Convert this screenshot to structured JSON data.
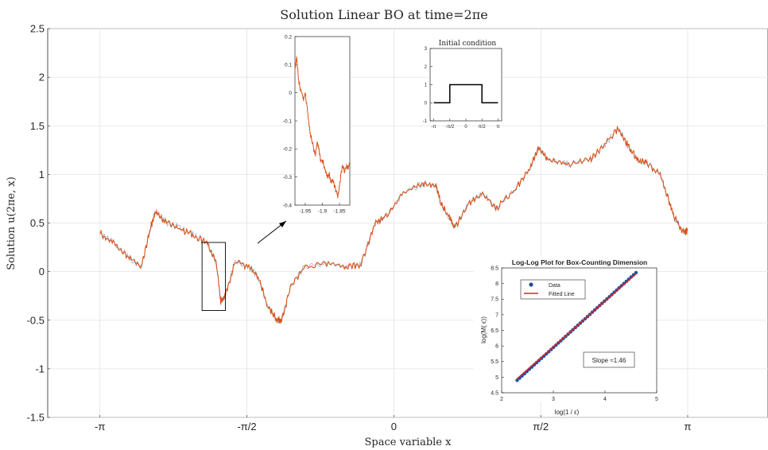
{
  "chart_data": [
    {
      "type": "line",
      "title": "Solution Linear BO at time=2πe",
      "xlabel": "Space variable x",
      "ylabel": "Solution u(2πe, x)",
      "xlim": [
        -3.7,
        4.0
      ],
      "ylim": [
        -1.5,
        2.5
      ],
      "x_ticks": [
        -3.1416,
        -1.5708,
        0,
        1.5708,
        3.1416
      ],
      "x_tick_labels": [
        "-π",
        "-π/2",
        "0",
        "π/2",
        "π"
      ],
      "y_ticks": [
        -1.5,
        -1,
        -0.5,
        0,
        0.5,
        1,
        1.5,
        2,
        2.5
      ],
      "y_tick_labels": [
        "-1.5",
        "-1",
        "-0.5",
        "0",
        "0.5",
        "1",
        "1.5",
        "2",
        "2.5"
      ],
      "grid": true,
      "series": [
        {
          "color": "#d95319",
          "points": [
            [
              -3.14,
              0.4
            ],
            [
              -3.0,
              0.3
            ],
            [
              -2.85,
              0.15
            ],
            [
              -2.7,
              0.05
            ],
            [
              -2.6,
              0.45
            ],
            [
              -2.55,
              0.62
            ],
            [
              -2.45,
              0.52
            ],
            [
              -2.3,
              0.45
            ],
            [
              -2.15,
              0.38
            ],
            [
              -2.0,
              0.3
            ],
            [
              -1.9,
              0.1
            ],
            [
              -1.85,
              -0.3
            ],
            [
              -1.8,
              -0.25
            ],
            [
              -1.7,
              0.1
            ],
            [
              -1.55,
              0.05
            ],
            [
              -1.45,
              -0.05
            ],
            [
              -1.35,
              -0.35
            ],
            [
              -1.25,
              -0.5
            ],
            [
              -1.2,
              -0.5
            ],
            [
              -1.1,
              -0.15
            ],
            [
              -0.95,
              0.05
            ],
            [
              -0.7,
              0.08
            ],
            [
              -0.5,
              0.05
            ],
            [
              -0.35,
              0.08
            ],
            [
              -0.2,
              0.5
            ],
            [
              -0.1,
              0.55
            ],
            [
              0.1,
              0.8
            ],
            [
              0.3,
              0.9
            ],
            [
              0.45,
              0.9
            ],
            [
              0.5,
              0.7
            ],
            [
              0.6,
              0.55
            ],
            [
              0.65,
              0.45
            ],
            [
              0.8,
              0.7
            ],
            [
              0.95,
              0.8
            ],
            [
              1.1,
              0.65
            ],
            [
              1.3,
              0.85
            ],
            [
              1.45,
              1.05
            ],
            [
              1.55,
              1.28
            ],
            [
              1.65,
              1.15
            ],
            [
              1.85,
              1.1
            ],
            [
              2.1,
              1.15
            ],
            [
              2.25,
              1.3
            ],
            [
              2.4,
              1.48
            ],
            [
              2.5,
              1.3
            ],
            [
              2.6,
              1.15
            ],
            [
              2.7,
              1.12
            ],
            [
              2.85,
              1.0
            ],
            [
              2.95,
              0.7
            ],
            [
              3.0,
              0.55
            ],
            [
              3.1,
              0.4
            ],
            [
              3.14,
              0.42
            ]
          ]
        }
      ],
      "zoom_box": {
        "xlim": [
          -2.05,
          -1.8
        ],
        "ylim": [
          -0.4,
          0.3
        ]
      }
    },
    {
      "type": "line",
      "title": "",
      "xlim": [
        -1.98,
        -1.82
      ],
      "ylim": [
        -0.4,
        0.2
      ],
      "x_tick_labels": [
        "-1.95",
        "-1.9",
        "-1.85"
      ],
      "x_ticks": [
        -1.95,
        -1.9,
        -1.85
      ],
      "y_ticks": [
        -0.4,
        -0.3,
        -0.2,
        -0.1,
        0,
        0.1,
        0.2
      ],
      "y_tick_labels": [
        "-0.4",
        "-0.3",
        "-0.2",
        "-0.1",
        "0",
        "0.1",
        "0.2"
      ],
      "series": [
        {
          "color": "#d95319",
          "points": [
            [
              -1.98,
              0.08
            ],
            [
              -1.975,
              0.13
            ],
            [
              -1.97,
              0.05
            ],
            [
              -1.965,
              0.02
            ],
            [
              -1.96,
              0.0
            ],
            [
              -1.955,
              -0.02
            ],
            [
              -1.95,
              0.0
            ],
            [
              -1.945,
              -0.05
            ],
            [
              -1.94,
              -0.1
            ],
            [
              -1.935,
              -0.15
            ],
            [
              -1.93,
              -0.17
            ],
            [
              -1.925,
              -0.2
            ],
            [
              -1.92,
              -0.22
            ],
            [
              -1.915,
              -0.18
            ],
            [
              -1.91,
              -0.2
            ],
            [
              -1.905,
              -0.24
            ],
            [
              -1.9,
              -0.24
            ],
            [
              -1.895,
              -0.26
            ],
            [
              -1.89,
              -0.28
            ],
            [
              -1.885,
              -0.3
            ],
            [
              -1.88,
              -0.29
            ],
            [
              -1.875,
              -0.32
            ],
            [
              -1.87,
              -0.31
            ],
            [
              -1.865,
              -0.33
            ],
            [
              -1.86,
              -0.35
            ],
            [
              -1.855,
              -0.37
            ],
            [
              -1.85,
              -0.33
            ],
            [
              -1.845,
              -0.28
            ],
            [
              -1.84,
              -0.26
            ],
            [
              -1.835,
              -0.28
            ],
            [
              -1.83,
              -0.26
            ],
            [
              -1.825,
              -0.27
            ],
            [
              -1.82,
              -0.25
            ]
          ]
        }
      ]
    },
    {
      "type": "line",
      "title": "Initial condition",
      "xlim": [
        -3.5,
        3.5
      ],
      "ylim": [
        -1,
        3
      ],
      "x_ticks": [
        -3.1416,
        -1.5708,
        0,
        1.5708,
        3.1416
      ],
      "x_tick_labels": [
        "-π",
        "-π/2",
        "0",
        "π/2",
        "π"
      ],
      "y_ticks": [
        -1,
        0,
        1,
        2,
        3
      ],
      "y_tick_labels": [
        "-1",
        "0",
        "1",
        "2",
        "3"
      ],
      "series": [
        {
          "color": "#000000",
          "points": [
            [
              -3.1416,
              0
            ],
            [
              -1.5708,
              0
            ],
            [
              -1.5708,
              1
            ],
            [
              1.5708,
              1
            ],
            [
              1.5708,
              0
            ],
            [
              3.1416,
              0
            ]
          ]
        }
      ]
    },
    {
      "type": "scatter",
      "title": "Log-Log Plot for Box-Counting Dimension",
      "xlabel": "log(1 /  ϵ)",
      "ylabel": "log(M( ϵ))",
      "xlim": [
        2,
        5
      ],
      "ylim": [
        4.5,
        8.5
      ],
      "x_ticks": [
        2,
        3,
        4,
        5
      ],
      "x_tick_labels": [
        "2",
        "3",
        "4",
        "5"
      ],
      "y_ticks": [
        4.5,
        5,
        5.5,
        6,
        6.5,
        7,
        7.5,
        8,
        8.5
      ],
      "y_tick_labels": [
        "4.5",
        "5",
        "5.5",
        "6",
        "6.5",
        "7",
        "7.5",
        "8",
        "8.5"
      ],
      "legend": {
        "placement": "top-left",
        "entries": [
          "Data",
          "Fitted Line"
        ]
      },
      "annotation": "Slope ≈1.46",
      "series": [
        {
          "name": "Data",
          "color": "#1f4e9c",
          "x_range": [
            2.3,
            4.6
          ],
          "y_range": [
            4.9,
            8.35
          ],
          "count": 50
        },
        {
          "name": "Fitted Line",
          "color": "#d62728",
          "points": [
            [
              2.3,
              4.95
            ],
            [
              4.6,
              8.31
            ]
          ]
        }
      ]
    }
  ]
}
